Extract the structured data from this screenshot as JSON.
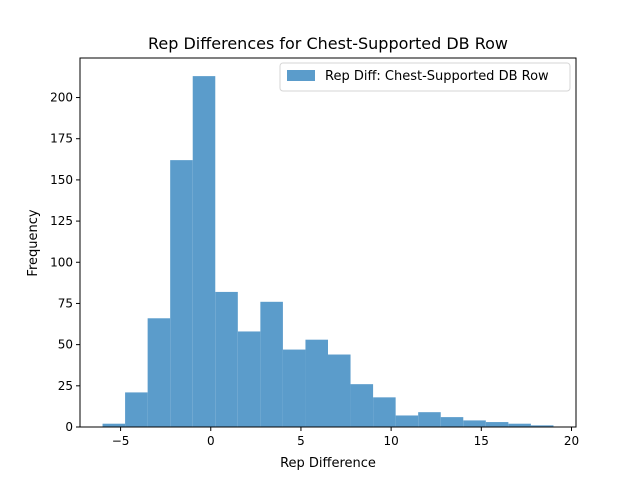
{
  "chart_data": {
    "type": "bar",
    "title": "Rep Differences for Chest-Supported DB Row",
    "xlabel": "Rep Difference",
    "ylabel": "Frequency",
    "xlim": [
      -7.25,
      20.25
    ],
    "ylim": [
      0,
      224
    ],
    "xticks": [
      -5,
      0,
      5,
      10,
      15,
      20
    ],
    "yticks": [
      0,
      25,
      50,
      75,
      100,
      125,
      150,
      175,
      200
    ],
    "legend_position": "top-right",
    "grid": false,
    "series": [
      {
        "name": "Rep Diff: Chest-Supported DB Row",
        "color": "#5b9ccb",
        "bin_edges": [
          -6,
          -4.75,
          -3.5,
          -2.25,
          -1,
          0.25,
          1.5,
          2.75,
          4,
          5.25,
          6.5,
          7.75,
          9,
          10.25,
          11.5,
          12.75,
          14,
          15.25,
          16.5,
          17.75,
          19
        ],
        "values": [
          2,
          21,
          66,
          162,
          213,
          82,
          58,
          76,
          47,
          53,
          44,
          26,
          18,
          7,
          9,
          6,
          4,
          3,
          2,
          1
        ]
      }
    ]
  }
}
